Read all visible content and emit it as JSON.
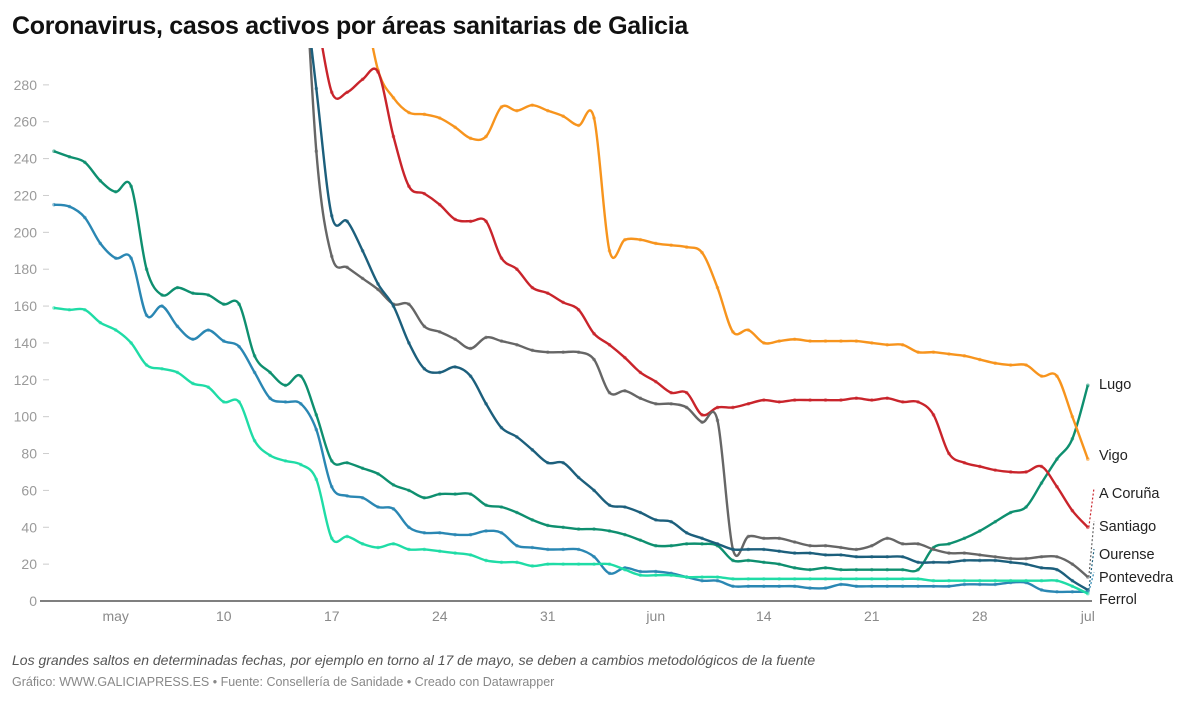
{
  "title": "Coronavirus, casos activos por áreas sanitarias de Galicia",
  "note": "Los grandes saltos en determinadas fechas, por ejemplo en torno al 17 de mayo, se deben a cambios metodológicos de la fuente",
  "footer": "Gráfico: WWW.GALICIAPRESS.ES • Fuente: Consellería de Sanidade • Creado con Datawrapper",
  "chart_data": {
    "type": "line",
    "title": "Coronavirus, casos activos por áreas sanitarias de Galicia",
    "xlabel": "",
    "ylabel": "",
    "ylim": [
      0,
      300
    ],
    "grid": false,
    "yticks": [
      "0",
      "20",
      "40",
      "60",
      "80",
      "100",
      "120",
      "140",
      "160",
      "180",
      "200",
      "220",
      "240",
      "260",
      "280"
    ],
    "xticks": [
      {
        "date": "05-03",
        "label": "may"
      },
      {
        "date": "05-10",
        "label": "10"
      },
      {
        "date": "05-17",
        "label": "17"
      },
      {
        "date": "05-24",
        "label": "24"
      },
      {
        "date": "05-31",
        "label": "31"
      },
      {
        "date": "06-07",
        "label": "jun"
      },
      {
        "date": "06-14",
        "label": "14"
      },
      {
        "date": "06-21",
        "label": "21"
      },
      {
        "date": "06-28",
        "label": "28"
      },
      {
        "date": "07-05",
        "label": "jul"
      }
    ],
    "x": [
      "04-29",
      "04-30",
      "05-01",
      "05-02",
      "05-03",
      "05-04",
      "05-05",
      "05-06",
      "05-07",
      "05-08",
      "05-09",
      "05-10",
      "05-11",
      "05-12",
      "05-13",
      "05-14",
      "05-15",
      "05-16",
      "05-17",
      "05-18",
      "05-19",
      "05-20",
      "05-21",
      "05-22",
      "05-23",
      "05-24",
      "05-25",
      "05-26",
      "05-27",
      "05-28",
      "05-29",
      "05-30",
      "05-31",
      "06-01",
      "06-02",
      "06-03",
      "06-04",
      "06-05",
      "06-06",
      "06-07",
      "06-08",
      "06-09",
      "06-10",
      "06-11",
      "06-12",
      "06-13",
      "06-14",
      "06-15",
      "06-16",
      "06-17",
      "06-18",
      "06-19",
      "06-20",
      "06-21",
      "06-22",
      "06-23",
      "06-24",
      "06-25",
      "06-26",
      "06-27",
      "06-28",
      "06-29",
      "06-30",
      "07-01",
      "07-02",
      "07-03",
      "07-04",
      "07-05"
    ],
    "series": [
      {
        "name": "Lugo",
        "color": "#0e8f6f",
        "values": [
          244,
          241,
          238,
          228,
          222,
          225,
          180,
          166,
          170,
          167,
          166,
          161,
          161,
          133,
          124,
          117,
          122,
          101,
          76,
          75,
          72,
          69,
          63,
          60,
          56,
          58,
          58,
          58,
          52,
          51,
          48,
          44,
          41,
          40,
          39,
          39,
          38,
          36,
          33,
          30,
          30,
          31,
          31,
          30,
          22,
          22,
          21,
          20,
          18,
          17,
          18,
          17,
          17,
          17,
          17,
          17,
          17,
          29,
          31,
          34,
          38,
          43,
          48,
          51,
          64,
          77,
          88,
          117
        ]
      },
      {
        "name": "Vigo",
        "color": "#f7941d",
        "values": [
          null,
          null,
          null,
          null,
          null,
          null,
          null,
          null,
          null,
          null,
          null,
          null,
          null,
          null,
          null,
          null,
          null,
          null,
          null,
          null,
          330,
          288,
          273,
          265,
          264,
          262,
          257,
          251,
          252,
          268,
          266,
          269,
          266,
          263,
          258,
          262,
          190,
          196,
          196,
          194,
          193,
          192,
          189,
          170,
          146,
          147,
          140,
          141,
          142,
          141,
          141,
          141,
          141,
          140,
          139,
          139,
          135,
          135,
          134,
          133,
          131,
          129,
          128,
          128,
          122,
          122,
          100,
          77
        ]
      },
      {
        "name": "A Coruña",
        "color": "#c9242b",
        "values": [
          null,
          null,
          null,
          null,
          null,
          null,
          null,
          null,
          null,
          null,
          null,
          null,
          null,
          null,
          null,
          null,
          null,
          320,
          276,
          276,
          283,
          287,
          252,
          225,
          221,
          215,
          207,
          206,
          206,
          186,
          180,
          170,
          167,
          162,
          158,
          145,
          139,
          132,
          124,
          119,
          113,
          113,
          101,
          105,
          105,
          107,
          109,
          108,
          109,
          109,
          109,
          109,
          110,
          109,
          110,
          108,
          108,
          101,
          80,
          75,
          73,
          71,
          70,
          70,
          73,
          62,
          49,
          40
        ]
      },
      {
        "name": "Santiago",
        "color": "#666666",
        "values": [
          null,
          null,
          null,
          null,
          null,
          null,
          null,
          null,
          null,
          null,
          null,
          null,
          null,
          null,
          null,
          null,
          390,
          244,
          187,
          181,
          175,
          169,
          161,
          161,
          149,
          146,
          142,
          137,
          143,
          141,
          139,
          136,
          135,
          135,
          135,
          131,
          113,
          114,
          110,
          107,
          107,
          105,
          97,
          98,
          28,
          35,
          34,
          34,
          32,
          30,
          30,
          29,
          28,
          30,
          34,
          31,
          31,
          28,
          26,
          26,
          25,
          24,
          23,
          23,
          24,
          24,
          20,
          13
        ]
      },
      {
        "name": "Ourense",
        "color": "#1c5f7c",
        "values": [
          null,
          null,
          null,
          null,
          null,
          null,
          null,
          null,
          null,
          null,
          null,
          null,
          null,
          null,
          null,
          null,
          350,
          278,
          209,
          206,
          190,
          172,
          160,
          140,
          126,
          124,
          127,
          122,
          107,
          94,
          89,
          82,
          75,
          75,
          67,
          60,
          52,
          51,
          48,
          44,
          43,
          37,
          34,
          31,
          28,
          28,
          28,
          27,
          26,
          26,
          25,
          25,
          24,
          24,
          24,
          24,
          21,
          21,
          21,
          22,
          22,
          22,
          21,
          20,
          18,
          17,
          11,
          6
        ]
      },
      {
        "name": "Pontevedra",
        "color": "#2a87b3",
        "values": [
          215,
          214,
          208,
          194,
          186,
          186,
          155,
          160,
          149,
          142,
          147,
          141,
          138,
          124,
          110,
          108,
          107,
          93,
          62,
          57,
          56,
          51,
          50,
          40,
          37,
          37,
          36,
          36,
          38,
          37,
          30,
          29,
          28,
          28,
          28,
          24,
          15,
          18,
          16,
          16,
          15,
          13,
          11,
          11,
          8,
          8,
          8,
          8,
          8,
          7,
          7,
          9,
          8,
          8,
          8,
          8,
          8,
          8,
          8,
          9,
          9,
          9,
          10,
          10,
          6,
          5,
          5,
          5
        ]
      },
      {
        "name": "Ferrol",
        "color": "#1fdca6",
        "values": [
          159,
          158,
          158,
          151,
          147,
          140,
          128,
          126,
          124,
          118,
          116,
          108,
          108,
          87,
          79,
          76,
          74,
          66,
          34,
          35,
          31,
          29,
          31,
          28,
          28,
          27,
          26,
          25,
          22,
          21,
          21,
          19,
          20,
          20,
          20,
          20,
          20,
          17,
          14,
          14,
          14,
          13,
          13,
          13,
          12,
          12,
          12,
          12,
          12,
          12,
          12,
          12,
          12,
          12,
          12,
          12,
          12,
          11,
          11,
          11,
          11,
          11,
          11,
          11,
          11,
          11,
          8,
          4
        ]
      }
    ]
  }
}
